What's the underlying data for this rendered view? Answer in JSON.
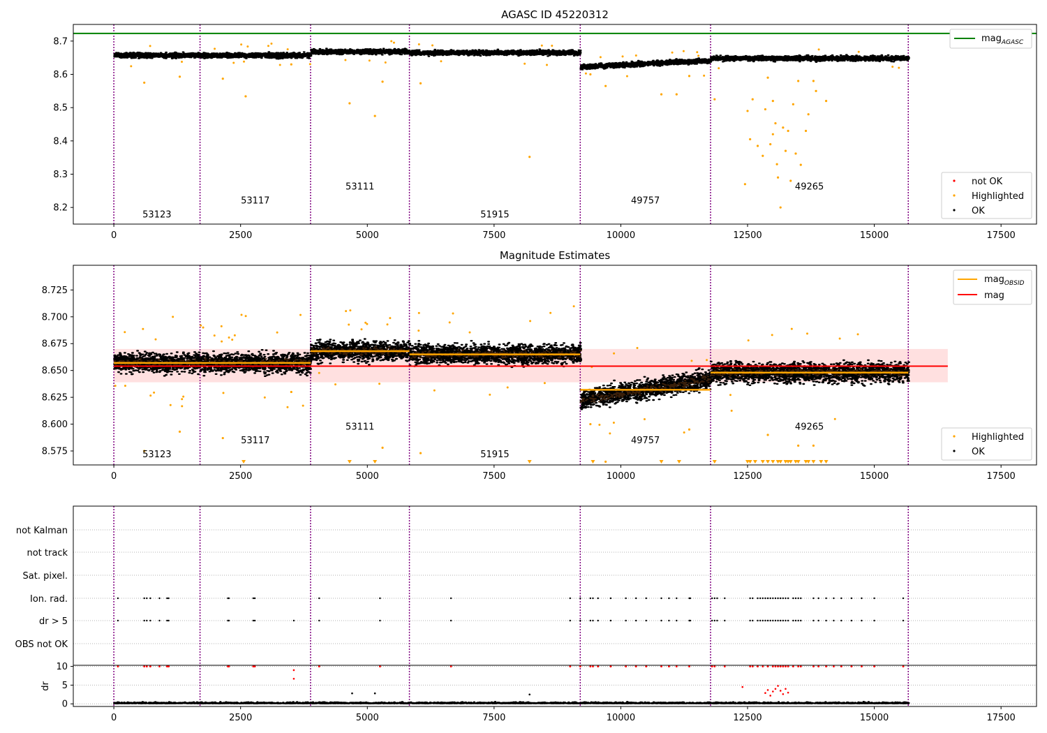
{
  "chart_data": [
    {
      "type": "scatter",
      "title": "AGASC ID 45220312",
      "xlim": [
        -800,
        18200
      ],
      "ylim": [
        8.15,
        8.75
      ],
      "xticks": [
        0,
        2500,
        5000,
        7500,
        10000,
        12500,
        15000,
        17500
      ],
      "yticks": [
        8.2,
        8.3,
        8.4,
        8.5,
        8.6,
        8.7
      ],
      "mag_agasc": 8.723,
      "obs_boundaries": [
        0,
        1700,
        3880,
        5830,
        9200,
        11770,
        15670
      ],
      "observations": [
        {
          "obsid": "53123",
          "start": 0,
          "end": 1700,
          "mean_mag": 8.657,
          "label_y": 8.17
        },
        {
          "obsid": "53117",
          "start": 1700,
          "end": 3880,
          "mean_mag": 8.657,
          "label_y": 8.212
        },
        {
          "obsid": "53111",
          "start": 3880,
          "end": 5830,
          "mean_mag": 8.668,
          "label_y": 8.254
        },
        {
          "obsid": "51915",
          "start": 5830,
          "end": 9200,
          "mean_mag": 8.665,
          "label_y": 8.17
        },
        {
          "obsid": "49757",
          "start": 9200,
          "end": 11770,
          "mean_mag": 8.632,
          "label_y": 8.212
        },
        {
          "obsid": "49265",
          "start": 11770,
          "end": 15670,
          "mean_mag": 8.648,
          "label_y": 8.254
        }
      ],
      "series": [
        {
          "name": "not OK",
          "color": "#ff0000"
        },
        {
          "name": "Highlighted",
          "color": "#ffa500"
        },
        {
          "name": "OK",
          "color": "#000000"
        }
      ],
      "highlighted_points": [
        [
          600,
          8.575
        ],
        [
          1300,
          8.593
        ],
        [
          2150,
          8.587
        ],
        [
          2600,
          8.534
        ],
        [
          3500,
          8.63
        ],
        [
          4650,
          8.513
        ],
        [
          5150,
          8.475
        ],
        [
          5300,
          8.578
        ],
        [
          6050,
          8.573
        ],
        [
          8200,
          8.352
        ],
        [
          9400,
          8.6
        ],
        [
          9700,
          8.565
        ],
        [
          10800,
          8.54
        ],
        [
          11100,
          8.54
        ],
        [
          11350,
          8.595
        ],
        [
          11850,
          8.525
        ],
        [
          12450,
          8.27
        ],
        [
          12550,
          8.405
        ],
        [
          12700,
          8.385
        ],
        [
          12800,
          8.355
        ],
        [
          12850,
          8.495
        ],
        [
          12950,
          8.39
        ],
        [
          13000,
          8.42
        ],
        [
          13050,
          8.453
        ],
        [
          13080,
          8.33
        ],
        [
          13100,
          8.29
        ],
        [
          13150,
          8.2
        ],
        [
          13200,
          8.44
        ],
        [
          13250,
          8.37
        ],
        [
          13300,
          8.43
        ],
        [
          13350,
          8.28
        ],
        [
          13450,
          8.362
        ],
        [
          13550,
          8.328
        ],
        [
          13650,
          8.43
        ],
        [
          13700,
          8.48
        ],
        [
          13850,
          8.55
        ],
        [
          14050,
          8.52
        ],
        [
          12500,
          8.49
        ],
        [
          12600,
          8.525
        ],
        [
          13000,
          8.52
        ],
        [
          13400,
          8.51
        ],
        [
          13500,
          8.58
        ],
        [
          12900,
          8.59
        ],
        [
          13800,
          8.58
        ]
      ],
      "legend": [
        "not OK",
        "Highlighted",
        "OK"
      ]
    },
    {
      "type": "scatter",
      "title": "Magnitude Estimates",
      "xlim": [
        -800,
        18200
      ],
      "ylim": [
        8.562,
        8.748
      ],
      "xticks": [
        0,
        2500,
        5000,
        7500,
        10000,
        12500,
        15000,
        17500
      ],
      "yticks": [
        8.575,
        8.6,
        8.625,
        8.65,
        8.675,
        8.7,
        8.725
      ],
      "mag": 8.654,
      "mag_band": [
        8.639,
        8.67
      ],
      "mag_band_xrange": [
        0,
        16450
      ],
      "series": [
        {
          "name": "mag_OBSID",
          "color": "#ffa500"
        },
        {
          "name": "mag",
          "color": "#ff0000"
        },
        {
          "name": "Highlighted",
          "color": "#ffa500"
        },
        {
          "name": "OK",
          "color": "#000000"
        }
      ],
      "triangle_points_x": [
        2560,
        4650,
        5150,
        8200,
        9450,
        10800,
        11150,
        11850,
        12500,
        12550,
        12650,
        12800,
        12900,
        13000,
        13100,
        13150,
        13250,
        13300,
        13350,
        13450,
        13500,
        13650,
        13700,
        13800,
        13950,
        14050
      ],
      "legend_lines": [
        "mag_OBSID",
        "mag"
      ],
      "legend_points": [
        "Highlighted",
        "OK"
      ]
    },
    {
      "type": "scatter",
      "title": "",
      "xlim": [
        -800,
        18200
      ],
      "xticks": [
        0,
        2500,
        5000,
        7500,
        10000,
        12500,
        15000,
        17500
      ],
      "flag_rows": [
        "not Kalman",
        "not track",
        "Sat. pixel.",
        "Ion. rad.",
        "dr > 5",
        "OBS not OK"
      ],
      "flag_events_x": [
        80,
        600,
        650,
        720,
        900,
        1050,
        1080,
        2250,
        2270,
        2750,
        2780,
        4050,
        5250,
        6650,
        9000,
        9200,
        9400,
        9450,
        9550,
        9800,
        10100,
        10300,
        10500,
        10800,
        10950,
        11100,
        11350,
        11370,
        11800,
        11850,
        11900,
        12050,
        12550,
        12600,
        12700,
        12750,
        12800,
        12850,
        12900,
        12950,
        13000,
        13050,
        13100,
        13150,
        13200,
        13250,
        13300,
        13400,
        13450,
        13500,
        13550,
        13800,
        13900,
        14050,
        14200,
        14350,
        14550,
        14750,
        15000,
        15570
      ],
      "dr_ylabel": "dr",
      "dr_yticks": [
        0,
        5,
        10
      ],
      "dr_ylim": [
        -0.7,
        10.3
      ],
      "dr_high_events_x": [
        80,
        600,
        650,
        720,
        900,
        1050,
        1080,
        2250,
        2270,
        2750,
        2780,
        4050,
        5250,
        6650,
        9000,
        9200,
        9400,
        9450,
        9550,
        9800,
        10100,
        10300,
        10500,
        10800,
        10950,
        11100,
        11350,
        11800,
        11850,
        12050,
        12550,
        12600,
        12700,
        12800,
        12900,
        13000,
        13050,
        13100,
        13150,
        13200,
        13250,
        13300,
        13400,
        13500,
        13550,
        13800,
        13900,
        14050,
        14200,
        14350,
        14550,
        14750,
        15000,
        15570
      ],
      "dr_mid_points": [
        [
          3550,
          9.0
        ],
        [
          3550,
          6.7
        ],
        [
          12400,
          4.5
        ],
        [
          12900,
          3.7
        ],
        [
          13000,
          3.3
        ],
        [
          13050,
          4.0
        ],
        [
          13100,
          4.8
        ],
        [
          13150,
          3.5
        ],
        [
          13200,
          2.6
        ],
        [
          13250,
          4.0
        ],
        [
          13300,
          3.0
        ],
        [
          4700,
          2.8
        ],
        [
          5150,
          2.8
        ],
        [
          8200,
          2.5
        ],
        [
          12850,
          2.9
        ],
        [
          12950,
          2.2
        ]
      ]
    }
  ]
}
